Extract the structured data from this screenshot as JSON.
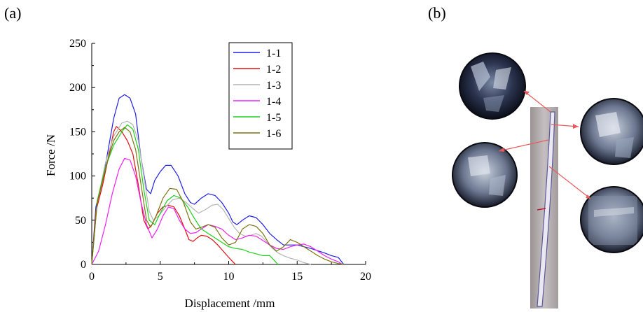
{
  "panels": {
    "a": "(a)",
    "b": "(b)"
  },
  "colors": {
    "1-1": "#1f1fe6",
    "1-2": "#e01010",
    "1-3": "#b4b4b4",
    "1-4": "#f020f0",
    "1-5": "#1ad21a",
    "1-6": "#7c7410",
    "axis": "#000000",
    "arrow": "#e85a5a"
  },
  "chart_data": {
    "type": "line",
    "title": "",
    "xlabel": "Displacement /mm",
    "ylabel": "Force /N",
    "xlim": [
      0,
      20
    ],
    "ylim": [
      0,
      250
    ],
    "xticks": [
      0,
      5,
      10,
      15,
      20
    ],
    "yticks": [
      0,
      50,
      100,
      150,
      200,
      250
    ],
    "grid": false,
    "legend": "top-right",
    "series": [
      {
        "name": "1-1",
        "points": [
          [
            0,
            0
          ],
          [
            0.3,
            65
          ],
          [
            0.8,
            95
          ],
          [
            1.2,
            130
          ],
          [
            1.6,
            165
          ],
          [
            2,
            188
          ],
          [
            2.4,
            192
          ],
          [
            2.8,
            188
          ],
          [
            3.2,
            170
          ],
          [
            3.6,
            120
          ],
          [
            4,
            85
          ],
          [
            4.3,
            80
          ],
          [
            4.6,
            95
          ],
          [
            5,
            105
          ],
          [
            5.4,
            112
          ],
          [
            5.8,
            112
          ],
          [
            6.3,
            100
          ],
          [
            6.8,
            80
          ],
          [
            7.2,
            70
          ],
          [
            7.5,
            68
          ],
          [
            8,
            75
          ],
          [
            8.5,
            80
          ],
          [
            9,
            78
          ],
          [
            9.5,
            70
          ],
          [
            10,
            58
          ],
          [
            10.3,
            48
          ],
          [
            10.6,
            45
          ],
          [
            11,
            50
          ],
          [
            11.5,
            55
          ],
          [
            12,
            53
          ],
          [
            12.5,
            45
          ],
          [
            13,
            35
          ],
          [
            13.5,
            28
          ],
          [
            14,
            22
          ],
          [
            14.5,
            22
          ],
          [
            15,
            22
          ],
          [
            15.5,
            20
          ],
          [
            16,
            18
          ],
          [
            17,
            13
          ],
          [
            17.5,
            10
          ],
          [
            18,
            8
          ],
          [
            18.4,
            0
          ]
        ]
      },
      {
        "name": "1-2",
        "points": [
          [
            0,
            0
          ],
          [
            0.3,
            60
          ],
          [
            0.8,
            90
          ],
          [
            1.2,
            120
          ],
          [
            1.6,
            150
          ],
          [
            1.8,
            156
          ],
          [
            2.2,
            150
          ],
          [
            2.6,
            140
          ],
          [
            3,
            125
          ],
          [
            3.4,
            90
          ],
          [
            3.8,
            50
          ],
          [
            4.1,
            40
          ],
          [
            4.4,
            45
          ],
          [
            4.8,
            58
          ],
          [
            5.2,
            65
          ],
          [
            5.6,
            67
          ],
          [
            6,
            65
          ],
          [
            6.4,
            55
          ],
          [
            6.8,
            40
          ],
          [
            7.1,
            28
          ],
          [
            7.4,
            26
          ],
          [
            7.7,
            30
          ],
          [
            8,
            33
          ],
          [
            8.4,
            32
          ],
          [
            8.8,
            28
          ],
          [
            9.2,
            22
          ],
          [
            9.6,
            15
          ],
          [
            10,
            8
          ],
          [
            10.3,
            3
          ],
          [
            10.5,
            0
          ]
        ]
      },
      {
        "name": "1-3",
        "points": [
          [
            0,
            0
          ],
          [
            0.4,
            70
          ],
          [
            1,
            115
          ],
          [
            1.6,
            145
          ],
          [
            2.2,
            160
          ],
          [
            2.6,
            162
          ],
          [
            3,
            158
          ],
          [
            3.4,
            140
          ],
          [
            3.8,
            100
          ],
          [
            4.2,
            60
          ],
          [
            4.5,
            50
          ],
          [
            4.9,
            55
          ],
          [
            5.4,
            65
          ],
          [
            5.9,
            73
          ],
          [
            6.4,
            75
          ],
          [
            6.9,
            70
          ],
          [
            7.4,
            63
          ],
          [
            7.8,
            58
          ],
          [
            8.3,
            62
          ],
          [
            8.8,
            67
          ],
          [
            9.2,
            68
          ],
          [
            9.6,
            62
          ],
          [
            10,
            52
          ],
          [
            10.4,
            42
          ],
          [
            10.8,
            35
          ],
          [
            11.2,
            32
          ],
          [
            11.6,
            33
          ],
          [
            12,
            35
          ],
          [
            12.4,
            32
          ],
          [
            12.8,
            25
          ],
          [
            13.2,
            18
          ],
          [
            13.6,
            13
          ],
          [
            14,
            10
          ],
          [
            14.5,
            7
          ],
          [
            15,
            5
          ],
          [
            15.5,
            2
          ],
          [
            16,
            0
          ]
        ]
      },
      {
        "name": "1-4",
        "points": [
          [
            0,
            0
          ],
          [
            0.5,
            15
          ],
          [
            1,
            45
          ],
          [
            1.5,
            80
          ],
          [
            2,
            108
          ],
          [
            2.4,
            120
          ],
          [
            2.8,
            118
          ],
          [
            3.2,
            100
          ],
          [
            3.6,
            70
          ],
          [
            4,
            45
          ],
          [
            4.4,
            30
          ],
          [
            4.8,
            40
          ],
          [
            5.2,
            55
          ],
          [
            5.6,
            65
          ],
          [
            6,
            63
          ],
          [
            6.4,
            50
          ],
          [
            6.8,
            40
          ],
          [
            7.2,
            35
          ],
          [
            7.6,
            36
          ],
          [
            8,
            40
          ],
          [
            8.5,
            45
          ],
          [
            9,
            43
          ],
          [
            9.5,
            40
          ],
          [
            10,
            33
          ],
          [
            10.5,
            28
          ],
          [
            11,
            30
          ],
          [
            11.5,
            33
          ],
          [
            12,
            32
          ],
          [
            12.5,
            27
          ],
          [
            13,
            22
          ],
          [
            13.5,
            18
          ],
          [
            14,
            17
          ],
          [
            14.5,
            20
          ],
          [
            15,
            22
          ],
          [
            15.5,
            23
          ],
          [
            16,
            20
          ],
          [
            16.5,
            15
          ],
          [
            17,
            10
          ],
          [
            17.5,
            6
          ],
          [
            18,
            3
          ],
          [
            18.3,
            0
          ]
        ]
      },
      {
        "name": "1-5",
        "points": [
          [
            0,
            0
          ],
          [
            0.4,
            72
          ],
          [
            1,
            110
          ],
          [
            1.6,
            135
          ],
          [
            2.2,
            150
          ],
          [
            2.6,
            158
          ],
          [
            3,
            153
          ],
          [
            3.4,
            130
          ],
          [
            3.8,
            85
          ],
          [
            4.2,
            50
          ],
          [
            4.6,
            45
          ],
          [
            5,
            58
          ],
          [
            5.5,
            72
          ],
          [
            6,
            78
          ],
          [
            6.5,
            75
          ],
          [
            7,
            65
          ],
          [
            7.5,
            52
          ],
          [
            8,
            40
          ],
          [
            8.5,
            35
          ],
          [
            9,
            30
          ],
          [
            9.5,
            25
          ],
          [
            10,
            20
          ],
          [
            10.5,
            18
          ],
          [
            11,
            17
          ],
          [
            11.5,
            14
          ],
          [
            12,
            12
          ],
          [
            12.5,
            10
          ],
          [
            13,
            10
          ],
          [
            13.3,
            5
          ],
          [
            13.6,
            0
          ]
        ]
      },
      {
        "name": "1-6",
        "points": [
          [
            0,
            0
          ],
          [
            0.4,
            70
          ],
          [
            0.8,
            95
          ],
          [
            1.2,
            120
          ],
          [
            1.6,
            140
          ],
          [
            2,
            150
          ],
          [
            2.4,
            155
          ],
          [
            2.8,
            150
          ],
          [
            3.2,
            130
          ],
          [
            3.6,
            90
          ],
          [
            4,
            50
          ],
          [
            4.3,
            42
          ],
          [
            4.7,
            55
          ],
          [
            5.2,
            75
          ],
          [
            5.7,
            86
          ],
          [
            6.2,
            85
          ],
          [
            6.7,
            70
          ],
          [
            7.2,
            48
          ],
          [
            7.6,
            40
          ],
          [
            8,
            42
          ],
          [
            8.5,
            45
          ],
          [
            9,
            42
          ],
          [
            9.5,
            30
          ],
          [
            10,
            22
          ],
          [
            10.5,
            25
          ],
          [
            11,
            40
          ],
          [
            11.5,
            45
          ],
          [
            12,
            43
          ],
          [
            12.5,
            35
          ],
          [
            13,
            22
          ],
          [
            13.5,
            15
          ],
          [
            14,
            20
          ],
          [
            14.5,
            28
          ],
          [
            15,
            25
          ],
          [
            15.5,
            20
          ],
          [
            16,
            15
          ],
          [
            16.5,
            10
          ],
          [
            17,
            6
          ],
          [
            17.5,
            3
          ],
          [
            18,
            1
          ],
          [
            18.4,
            0
          ]
        ]
      }
    ]
  }
}
